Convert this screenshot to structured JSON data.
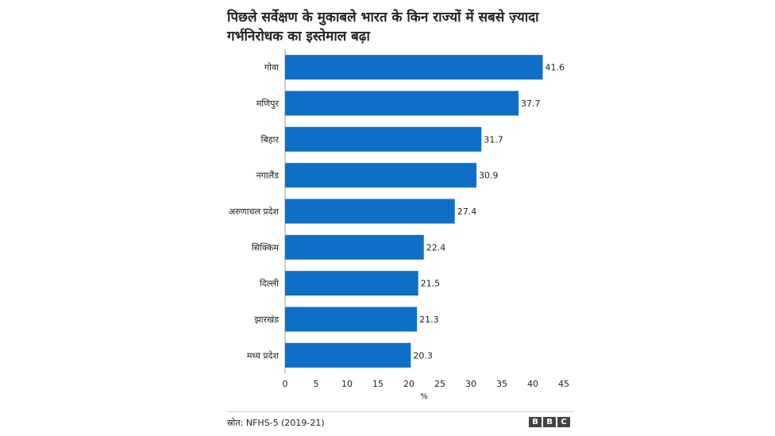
{
  "chart_data": {
    "type": "bar",
    "orientation": "horizontal",
    "title": "पिछले सर्वेक्षण के मुकाबले भारत के किन राज्यों में सबसे ज़्यादा गर्भनिरोधक का इस्तेमाल बढ़ा",
    "categories": [
      "गोवा",
      "मणिपुर",
      "बिहार",
      "नगालैंड",
      "अरुणाचल प्रदेश",
      "सिक्किम",
      "दिल्ली",
      "झारखंड",
      "मध्य प्रदेश"
    ],
    "values": [
      41.6,
      37.7,
      31.7,
      30.9,
      27.4,
      22.4,
      21.5,
      21.3,
      20.3
    ],
    "value_labels": [
      "41.6",
      "37.7",
      "31.7",
      "30.9",
      "27.4",
      "22.4",
      "21.5",
      "21.3",
      "20.3"
    ],
    "xlabel": "%",
    "ylabel": "",
    "xlim": [
      0,
      45
    ],
    "xticks": [
      0,
      5,
      10,
      15,
      20,
      25,
      30,
      35,
      40,
      45
    ],
    "grid": false,
    "bar_color": "#0f6fc6"
  },
  "footer": {
    "source": "स्रोत: NFHS-5 (2019-21)",
    "logo_letters": [
      "B",
      "B",
      "C"
    ]
  }
}
